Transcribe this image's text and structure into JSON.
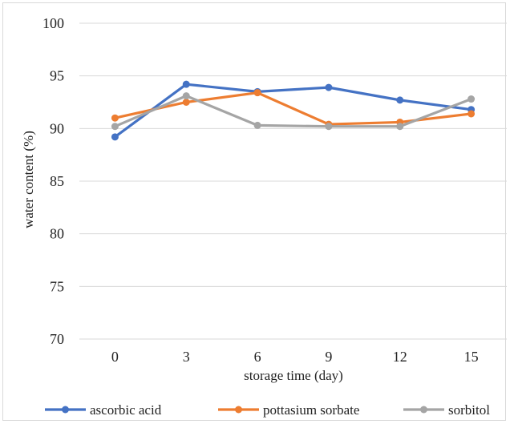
{
  "chart_data": {
    "type": "line",
    "title": "",
    "xlabel": "storage time (day)",
    "ylabel": "water content (%)",
    "x": [
      0,
      3,
      6,
      9,
      12,
      15
    ],
    "ylim": [
      70,
      100
    ],
    "yticks": [
      70,
      75,
      80,
      85,
      90,
      95,
      100
    ],
    "grid": "horizontal",
    "legend": "bottom",
    "series": [
      {
        "name": "ascorbic acid",
        "color": "#4472c4",
        "values": [
          89.2,
          94.2,
          93.5,
          93.9,
          92.7,
          91.8
        ]
      },
      {
        "name": "pottasium sorbate",
        "color": "#ed7d31",
        "values": [
          91.0,
          92.5,
          93.4,
          90.4,
          90.6,
          91.4
        ]
      },
      {
        "name": "sorbitol",
        "color": "#a5a5a5",
        "values": [
          90.2,
          93.1,
          90.3,
          90.2,
          90.2,
          92.8
        ]
      }
    ]
  }
}
